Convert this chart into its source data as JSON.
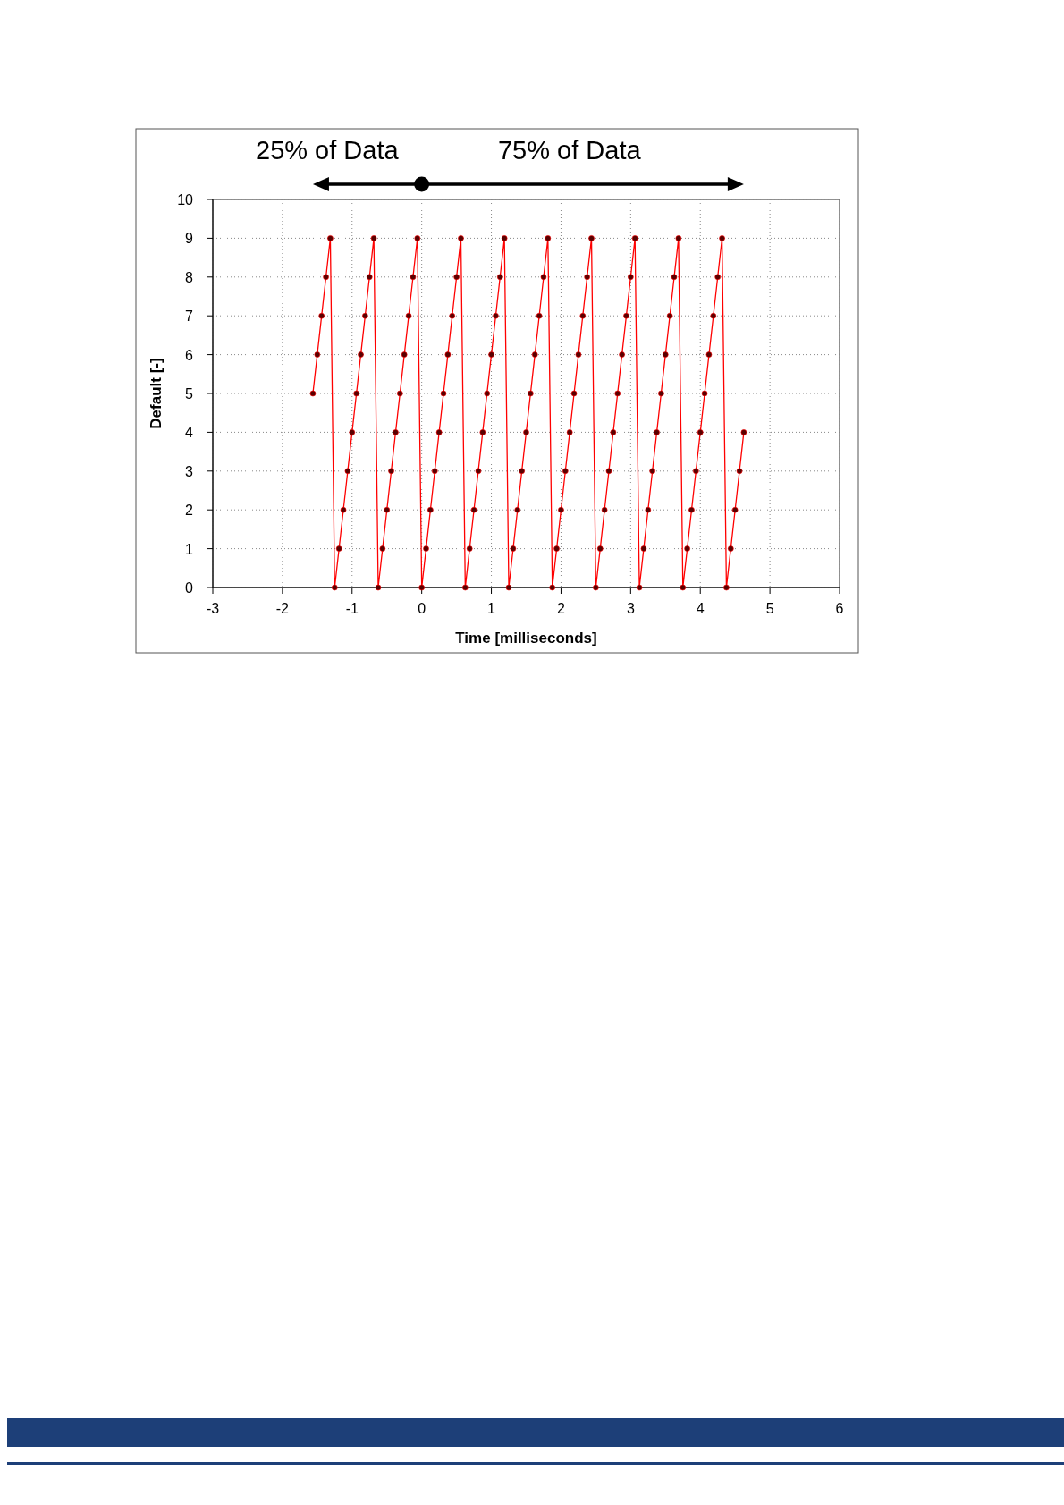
{
  "chart_data": {
    "type": "line",
    "xlabel": "Time [milliseconds]",
    "ylabel": "Default [-]",
    "annotations": [
      "25% of Data",
      "75% of Data"
    ],
    "x": [
      -1.5625,
      -1.5,
      -1.4375,
      -1.375,
      -1.3125,
      -1.25,
      -1.1875,
      -1.125,
      -1.0625,
      -1,
      -0.9375,
      -0.875,
      -0.8125,
      -0.75,
      -0.6875,
      -0.625,
      -0.5625,
      -0.5,
      -0.4375,
      -0.375,
      -0.3125,
      -0.25,
      -0.1875,
      -0.125,
      -0.0625,
      0,
      0.0625,
      0.125,
      0.1875,
      0.25,
      0.3125,
      0.375,
      0.4375,
      0.5,
      0.5625,
      0.625,
      0.6875,
      0.75,
      0.8125,
      0.875,
      0.9375,
      1,
      1.0625,
      1.125,
      1.1875,
      1.25,
      1.3125,
      1.375,
      1.4375,
      1.5,
      1.5625,
      1.625,
      1.6875,
      1.75,
      1.8125,
      1.875,
      1.9375,
      2,
      2.0625,
      2.125,
      2.1875,
      2.25,
      2.3125,
      2.375,
      2.4375,
      2.5,
      2.5625,
      2.625,
      2.6875,
      2.75,
      2.8125,
      2.875,
      2.9375,
      3,
      3.0625,
      3.125,
      3.1875,
      3.25,
      3.3125,
      3.375,
      3.4375,
      3.5,
      3.5625,
      3.625,
      3.6875,
      3.75,
      3.8125,
      3.875,
      3.9375,
      4,
      4.0625,
      4.125,
      4.1875,
      4.25,
      4.3125,
      4.375,
      4.4375,
      4.5,
      4.5625,
      4.625
    ],
    "series": [
      {
        "color": "#ff0000",
        "values": [
          5,
          6,
          7,
          8,
          9,
          0,
          1,
          2,
          3,
          4,
          5,
          6,
          7,
          8,
          9,
          0,
          1,
          2,
          3,
          4,
          5,
          6,
          7,
          8,
          9,
          0,
          1,
          2,
          3,
          4,
          5,
          6,
          7,
          8,
          9,
          0,
          1,
          2,
          3,
          4,
          5,
          6,
          7,
          8,
          9,
          0,
          1,
          2,
          3,
          4,
          5,
          6,
          7,
          8,
          9,
          0,
          1,
          2,
          3,
          4,
          5,
          6,
          7,
          8,
          9,
          0,
          1,
          2,
          3,
          4,
          5,
          6,
          7,
          8,
          9,
          0,
          1,
          2,
          3,
          4,
          5,
          6,
          7,
          8,
          9,
          0,
          1,
          2,
          3,
          4,
          5,
          6,
          7,
          8,
          9,
          0,
          1,
          2,
          3,
          4
        ]
      }
    ],
    "xlim": [
      -3,
      6
    ],
    "xticks": [
      -3,
      -2,
      -1,
      0,
      1,
      2,
      3,
      4,
      5,
      6
    ],
    "ylim": [
      0,
      10
    ],
    "yticks": [
      0,
      1,
      2,
      3,
      4,
      5,
      6,
      7,
      8,
      9,
      10
    ],
    "grid": true,
    "marker": "circle",
    "line_style": "solid"
  }
}
